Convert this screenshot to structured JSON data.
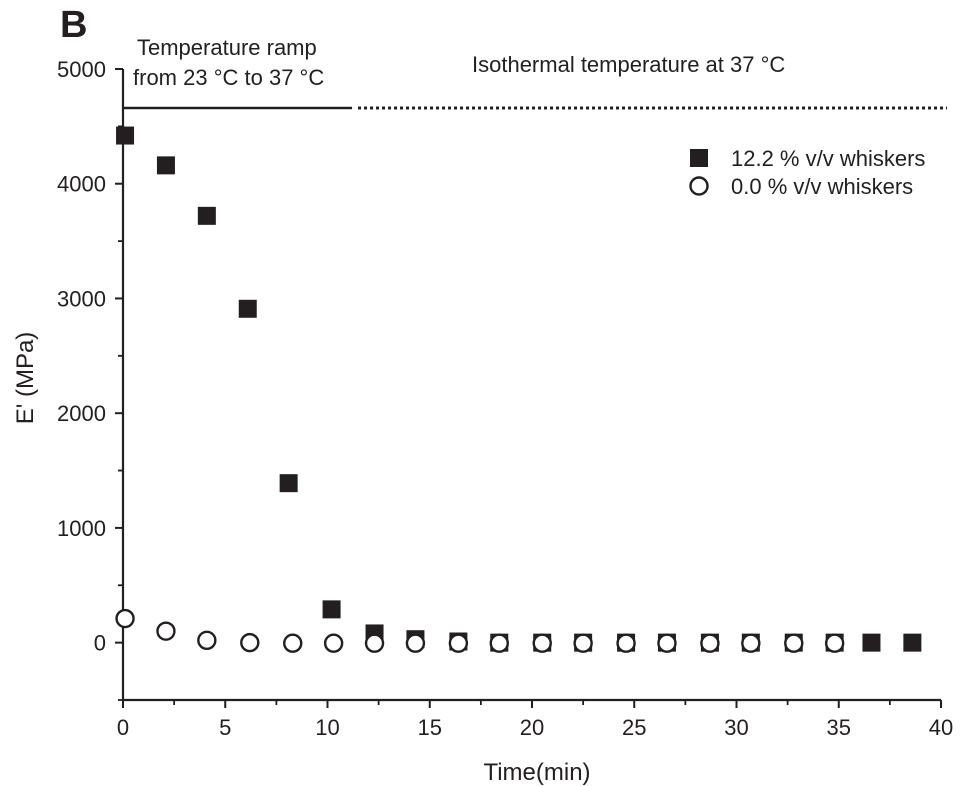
{
  "chart_data": {
    "type": "scatter",
    "panel_label": "B",
    "xlabel": "Time(min)",
    "ylabel": "E' (MPa)",
    "xlim": [
      0,
      40
    ],
    "ylim": [
      -500,
      5000
    ],
    "xticks": [
      0,
      5,
      10,
      15,
      20,
      25,
      30,
      35,
      40
    ],
    "yticks": [
      0,
      1000,
      2000,
      3000,
      4000,
      5000
    ],
    "grid": false,
    "legend_position": "top-right",
    "annotations": {
      "ramp_line1": "Temperature ramp",
      "ramp_line2": "from 23 °C to 37 °C",
      "isothermal": "Isothermal temperature at 37 °C"
    },
    "phase_lines": {
      "ramp_end_x": 11.2,
      "isothermal_end_x": 40,
      "level_y": 4660
    },
    "series": [
      {
        "name": "12.2 % v/v whiskers",
        "marker": "square-filled",
        "color": "#231f20",
        "x": [
          0.1,
          2.1,
          4.1,
          6.1,
          8.1,
          10.2,
          12.3,
          14.3,
          16.4,
          18.4,
          20.5,
          22.5,
          24.6,
          26.6,
          28.7,
          30.7,
          32.8,
          34.8,
          36.6,
          38.6
        ],
        "y": [
          4420,
          4160,
          3720,
          2910,
          1390,
          290,
          80,
          30,
          10,
          0,
          0,
          0,
          0,
          0,
          0,
          0,
          0,
          0,
          0,
          0
        ]
      },
      {
        "name": "0.0 % v/v whiskers",
        "marker": "circle-open",
        "color": "#231f20",
        "x": [
          0.1,
          2.1,
          4.1,
          6.2,
          8.3,
          10.3,
          12.3,
          14.3,
          16.4,
          18.4,
          20.5,
          22.5,
          24.6,
          26.6,
          28.7,
          30.7,
          32.8,
          34.8
        ],
        "y": [
          210,
          100,
          20,
          0,
          -5,
          -5,
          -5,
          -5,
          -5,
          -5,
          -5,
          -5,
          -5,
          -5,
          -5,
          -5,
          -5,
          -5
        ]
      }
    ]
  }
}
